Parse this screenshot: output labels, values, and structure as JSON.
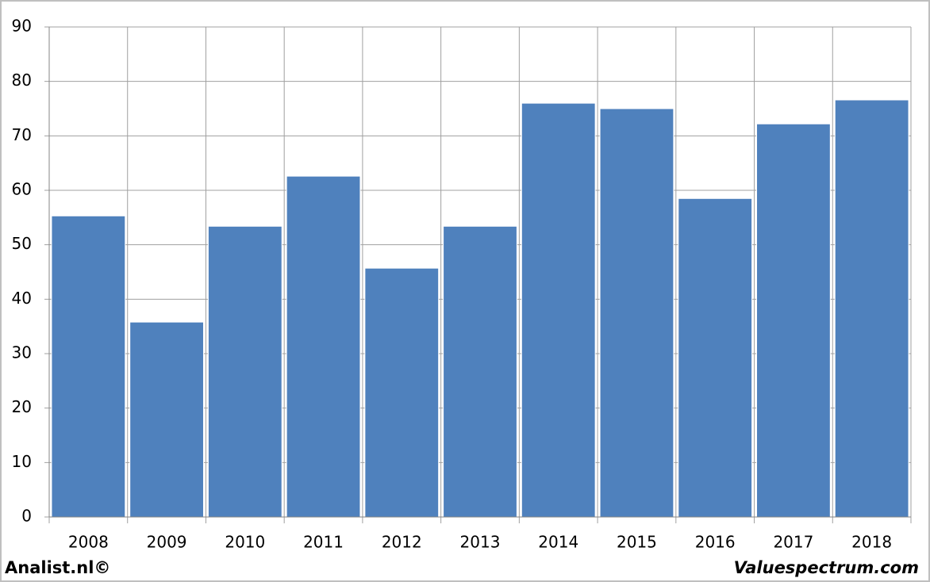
{
  "chart_data": {
    "type": "bar",
    "categories": [
      "2008",
      "2009",
      "2010",
      "2011",
      "2012",
      "2013",
      "2014",
      "2015",
      "2016",
      "2017",
      "2018"
    ],
    "values": [
      55.3,
      35.8,
      53.4,
      62.6,
      45.7,
      53.4,
      76.0,
      75.0,
      58.5,
      72.2,
      76.6
    ],
    "color": "#4f81bd",
    "ylim": [
      0,
      90
    ],
    "yticks": [
      0,
      10,
      20,
      30,
      40,
      50,
      60,
      70,
      80,
      90
    ],
    "grid": true
  },
  "footer": {
    "left": "Analist.nl©",
    "right": "Valuespectrum.com"
  }
}
